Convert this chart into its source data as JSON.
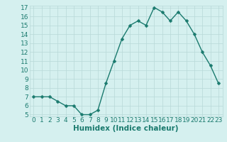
{
  "xlabel": "Humidex (Indice chaleur)",
  "ylabel": "",
  "x": [
    0,
    1,
    2,
    3,
    4,
    5,
    6,
    7,
    8,
    9,
    10,
    11,
    12,
    13,
    14,
    15,
    16,
    17,
    18,
    19,
    20,
    21,
    22,
    23
  ],
  "y": [
    7.0,
    7.0,
    7.0,
    6.5,
    6.0,
    6.0,
    5.0,
    5.0,
    5.5,
    8.5,
    11.0,
    13.5,
    15.0,
    15.5,
    15.0,
    17.0,
    16.5,
    15.5,
    16.5,
    15.5,
    14.0,
    12.0,
    10.5,
    8.5
  ],
  "line_color": "#1a7a6e",
  "marker": "D",
  "marker_size": 2.5,
  "bg_color": "#d5f0ef",
  "grid_color": "#b8d8d8",
  "ylim": [
    5,
    17
  ],
  "xlim": [
    -0.5,
    23.5
  ],
  "yticks": [
    5,
    6,
    7,
    8,
    9,
    10,
    11,
    12,
    13,
    14,
    15,
    16,
    17
  ],
  "xticks": [
    0,
    1,
    2,
    3,
    4,
    5,
    6,
    7,
    8,
    9,
    10,
    11,
    12,
    13,
    14,
    15,
    16,
    17,
    18,
    19,
    20,
    21,
    22,
    23
  ],
  "xlabel_fontsize": 7.5,
  "tick_fontsize": 6.5,
  "line_width": 1.0
}
